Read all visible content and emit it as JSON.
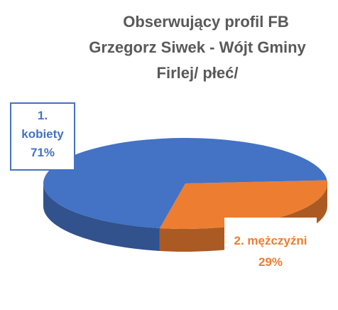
{
  "chart_data": {
    "type": "pie",
    "title": [
      "Obserwujący profil FB",
      "Grzegorz Siwek - Wójt Gminy",
      "Firlej/ płeć/"
    ],
    "categories": [
      "1. kobiety",
      "2. mężczyźni"
    ],
    "values": [
      71,
      29
    ],
    "value_labels": [
      "71%",
      "29%"
    ],
    "colors": [
      "#4472c4",
      "#ed7d31"
    ]
  }
}
